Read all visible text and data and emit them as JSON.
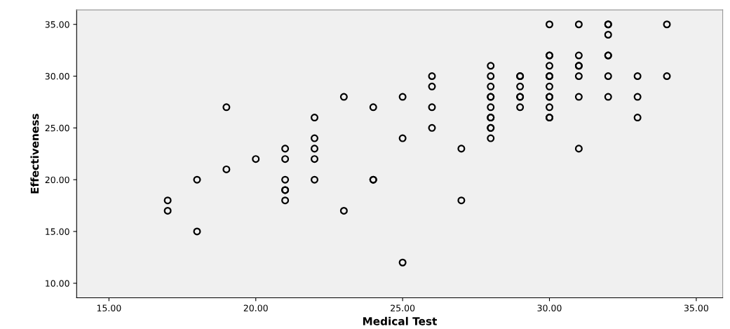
{
  "chart_data": {
    "type": "scatter",
    "xlabel": "Medical Test",
    "ylabel": "Effectiveness",
    "x": [
      17,
      17,
      18,
      18,
      19,
      19,
      20,
      21,
      21,
      21,
      21,
      21,
      21,
      22,
      22,
      22,
      22,
      22,
      23,
      23,
      24,
      24,
      24,
      25,
      25,
      25,
      26,
      26,
      26,
      26,
      27,
      27,
      28,
      28,
      28,
      28,
      28,
      28,
      28,
      28,
      28,
      28,
      28,
      29,
      29,
      29,
      29,
      29,
      29,
      30,
      30,
      30,
      30,
      30,
      30,
      30,
      30,
      30,
      30,
      30,
      30,
      31,
      31,
      31,
      31,
      31,
      31,
      31,
      32,
      32,
      32,
      32,
      32,
      32,
      32,
      33,
      33,
      33,
      34,
      34
    ],
    "values": [
      18,
      17,
      20,
      15,
      27,
      21,
      22,
      23,
      22,
      20,
      19,
      19,
      18,
      26,
      24,
      23,
      22,
      20,
      28,
      17,
      27,
      20,
      20,
      28,
      24,
      12,
      30,
      29,
      27,
      25,
      23,
      18,
      31,
      30,
      29,
      28,
      28,
      27,
      26,
      26,
      25,
      25,
      24,
      30,
      30,
      29,
      28,
      28,
      27,
      35,
      32,
      32,
      31,
      30,
      30,
      29,
      28,
      28,
      27,
      26,
      26,
      35,
      32,
      31,
      31,
      30,
      28,
      23,
      35,
      35,
      34,
      32,
      32,
      30,
      28,
      30,
      28,
      26,
      35,
      30
    ],
    "color": "#000000",
    "marker": "circle",
    "grid": false,
    "xlim": [
      13.9,
      35.9
    ],
    "ylim": [
      8.6,
      36.4
    ],
    "xticks": [
      {
        "value": 15,
        "label": "15.00"
      },
      {
        "value": 20,
        "label": "20.00"
      },
      {
        "value": 25,
        "label": "25.00"
      },
      {
        "value": 30,
        "label": "30.00"
      },
      {
        "value": 35,
        "label": "35.00"
      }
    ],
    "yticks": [
      {
        "value": 10,
        "label": "10.00"
      },
      {
        "value": 15,
        "label": "15.00"
      },
      {
        "value": 20,
        "label": "20.00"
      },
      {
        "value": 25,
        "label": "25.00"
      },
      {
        "value": 30,
        "label": "30.00"
      },
      {
        "value": 35,
        "label": "35.00"
      }
    ]
  }
}
